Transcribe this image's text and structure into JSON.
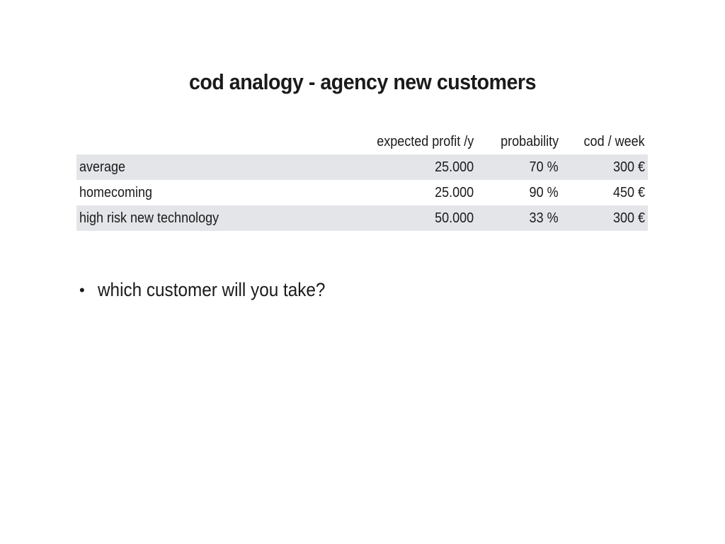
{
  "slide": {
    "title": "cod analogy - agency new customers"
  },
  "table": {
    "headers": [
      "",
      "expected profit /y",
      "probability",
      "cod / week"
    ],
    "rows": [
      {
        "label": "average",
        "profit": "25.000",
        "probability": "70 %",
        "cod": "300 €"
      },
      {
        "label": "homecoming",
        "profit": "25.000",
        "probability": "90 %",
        "cod": "450 €"
      },
      {
        "label": "high risk new technology",
        "profit": "50.000",
        "probability": "33 %",
        "cod": "300 €"
      }
    ]
  },
  "bullets": [
    {
      "text": "which customer will you take?"
    }
  ],
  "colors": {
    "shaded_row": "#e4e5e9",
    "text": "#1a1a1a",
    "background": "#ffffff"
  }
}
